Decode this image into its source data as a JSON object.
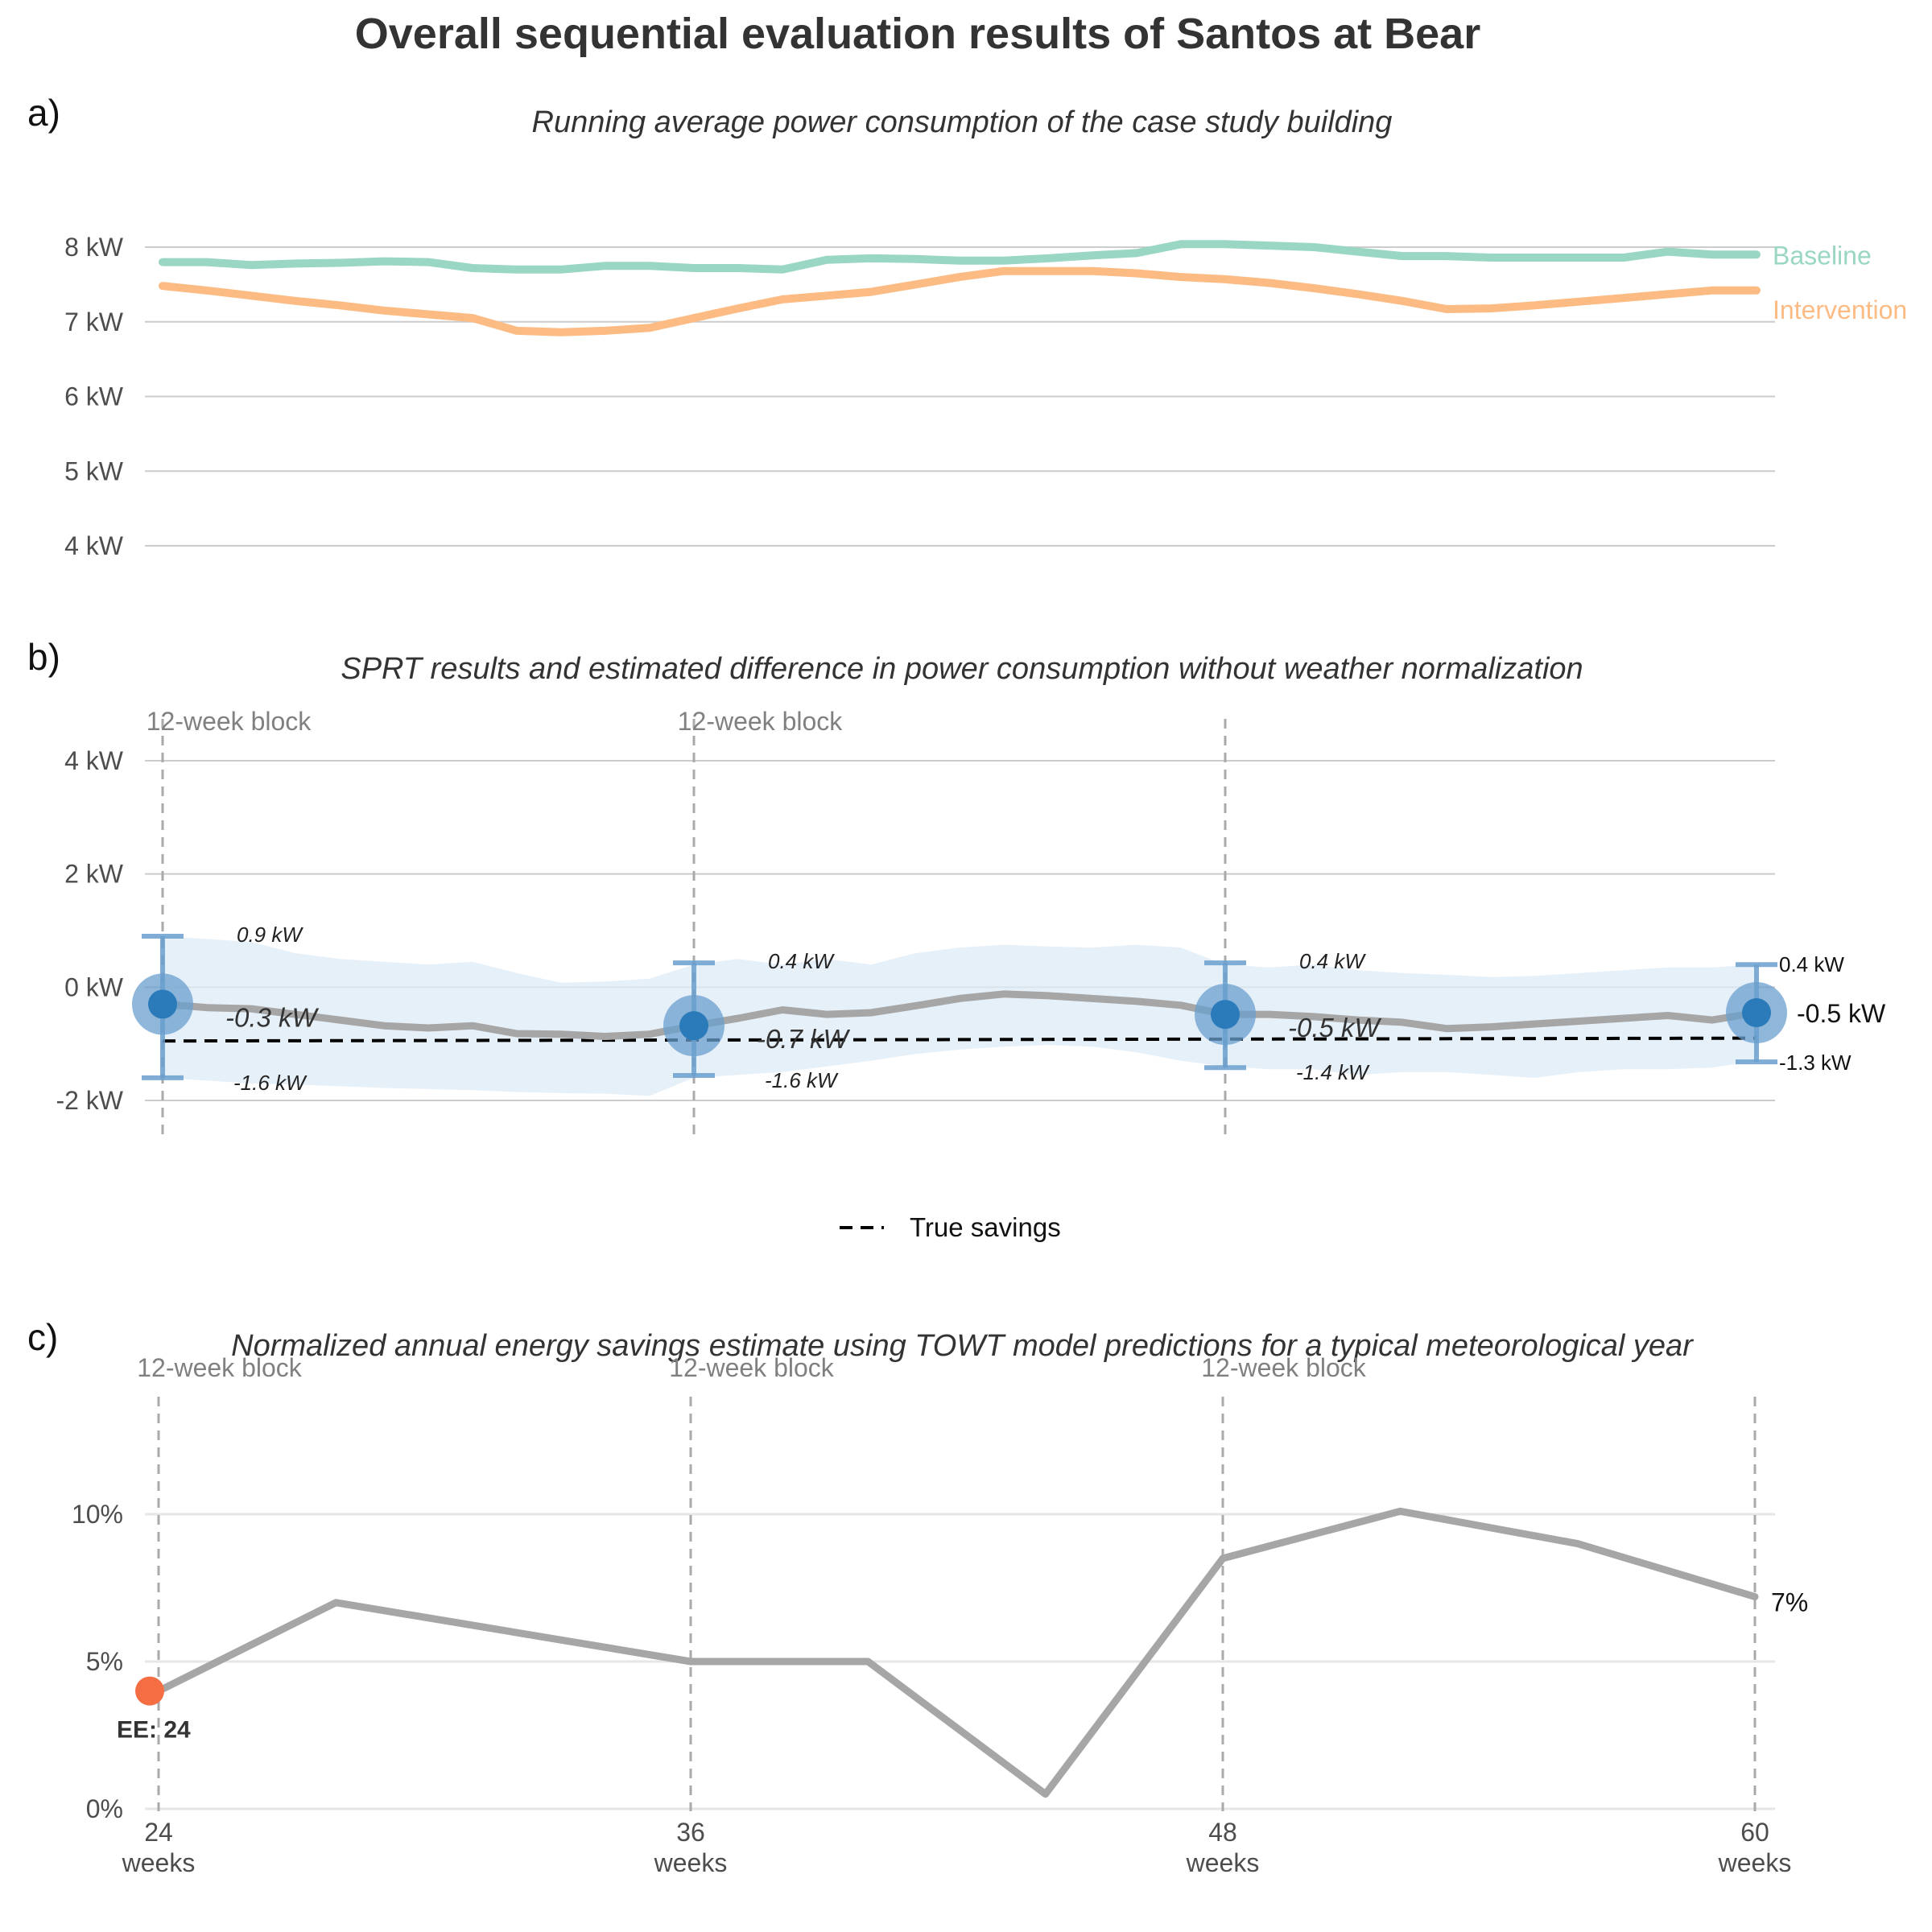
{
  "title": "Overall sequential evaluation results of Santos at Bear",
  "colors": {
    "baseline": "#99d6c4",
    "intervention": "#fdbb84",
    "estimate_line": "#a6a6a6",
    "ci_band": "#deebf7",
    "point": "#2b7bba",
    "point_halo": "#6a9fce",
    "errorbar": "#6a9fce",
    "ee_point": "#f46d43"
  },
  "chart_data": [
    {
      "panel": "a)",
      "type": "line",
      "title": "Running average power consumption of the case study building",
      "xlim": [
        24,
        60
      ],
      "ylim": [
        4,
        8
      ],
      "yticks": [
        4,
        5,
        6,
        7,
        8
      ],
      "ytick_labels": [
        "4 kW",
        "5 kW",
        "6 kW",
        "7 kW",
        "8 kW"
      ],
      "grid": true,
      "x": [
        24,
        25,
        26,
        27,
        28,
        29,
        30,
        31,
        32,
        33,
        34,
        35,
        36,
        37,
        38,
        39,
        40,
        41,
        42,
        43,
        44,
        45,
        46,
        47,
        48,
        49,
        50,
        51,
        52,
        53,
        54,
        55,
        56,
        57,
        58,
        59,
        60
      ],
      "series": [
        {
          "name": "Baseline",
          "color": "#99d6c4",
          "values": [
            7.8,
            7.8,
            7.76,
            7.78,
            7.79,
            7.81,
            7.8,
            7.72,
            7.7,
            7.7,
            7.75,
            7.75,
            7.72,
            7.72,
            7.7,
            7.83,
            7.85,
            7.84,
            7.82,
            7.82,
            7.85,
            7.89,
            7.92,
            8.04,
            8.04,
            8.02,
            8.0,
            7.94,
            7.88,
            7.88,
            7.86,
            7.86,
            7.86,
            7.86,
            7.94,
            7.9,
            7.9
          ]
        },
        {
          "name": "Intervention",
          "color": "#fdbb84",
          "values": [
            7.48,
            7.42,
            7.35,
            7.28,
            7.22,
            7.15,
            7.1,
            7.05,
            6.88,
            6.86,
            6.88,
            6.92,
            7.05,
            7.18,
            7.3,
            7.35,
            7.4,
            7.5,
            7.6,
            7.68,
            7.68,
            7.68,
            7.65,
            7.6,
            7.57,
            7.52,
            7.45,
            7.37,
            7.28,
            7.17,
            7.18,
            7.22,
            7.27,
            7.32,
            7.37,
            7.42,
            7.42
          ]
        }
      ]
    },
    {
      "panel": "b)",
      "type": "line",
      "title": "SPRT results and estimated difference in power consumption without weather normalization",
      "xlim": [
        24,
        60
      ],
      "ylim": [
        -2,
        4
      ],
      "yticks": [
        -2,
        0,
        2,
        4
      ],
      "ytick_labels": [
        "-2 kW",
        "0 kW",
        "2 kW",
        "4 kW"
      ],
      "grid": true,
      "block_label": "12-week block",
      "blocks": [
        24,
        36,
        48,
        60
      ],
      "x": [
        24,
        25,
        26,
        27,
        28,
        29,
        30,
        31,
        32,
        33,
        34,
        35,
        36,
        37,
        38,
        39,
        40,
        41,
        42,
        43,
        44,
        45,
        46,
        47,
        48,
        49,
        50,
        51,
        52,
        53,
        54,
        55,
        56,
        57,
        58,
        59,
        60
      ],
      "estimate": [
        -0.3,
        -0.36,
        -0.38,
        -0.48,
        -0.58,
        -0.68,
        -0.72,
        -0.68,
        -0.82,
        -0.83,
        -0.87,
        -0.83,
        -0.68,
        -0.55,
        -0.4,
        -0.48,
        -0.45,
        -0.33,
        -0.2,
        -0.12,
        -0.15,
        -0.2,
        -0.25,
        -0.32,
        -0.48,
        -0.48,
        -0.52,
        -0.58,
        -0.62,
        -0.73,
        -0.7,
        -0.65,
        -0.6,
        -0.55,
        -0.5,
        -0.58,
        -0.45
      ],
      "ci_upper": [
        0.9,
        0.85,
        0.8,
        0.6,
        0.5,
        0.45,
        0.4,
        0.45,
        0.25,
        0.08,
        0.1,
        0.15,
        0.4,
        0.5,
        0.4,
        0.5,
        0.4,
        0.6,
        0.7,
        0.75,
        0.72,
        0.7,
        0.75,
        0.7,
        0.4,
        0.35,
        0.4,
        0.3,
        0.25,
        0.22,
        0.18,
        0.2,
        0.25,
        0.3,
        0.35,
        0.35,
        0.4
      ],
      "ci_lower": [
        -1.6,
        -1.65,
        -1.7,
        -1.72,
        -1.75,
        -1.78,
        -1.8,
        -1.82,
        -1.85,
        -1.87,
        -1.88,
        -1.92,
        -1.6,
        -1.55,
        -1.5,
        -1.4,
        -1.3,
        -1.18,
        -1.1,
        -1.05,
        -1.02,
        -1.05,
        -1.15,
        -1.3,
        -1.4,
        -1.45,
        -1.45,
        -1.55,
        -1.5,
        -1.5,
        -1.55,
        -1.6,
        -1.5,
        -1.45,
        -1.45,
        -1.42,
        -1.3
      ],
      "true_savings": {
        "label": "True savings",
        "x": [
          24,
          60
        ],
        "values": [
          -0.95,
          -0.9
        ]
      },
      "checkpoints": [
        {
          "x": 24,
          "estimate": -0.3,
          "upper": 0.9,
          "lower": -1.6,
          "estimate_label": "-0.3 kW",
          "upper_label": "0.9 kW",
          "lower_label": "-1.6 kW"
        },
        {
          "x": 36,
          "estimate": -0.68,
          "upper": 0.43,
          "lower": -1.56,
          "estimate_label": "-0.7 kW",
          "upper_label": "0.4 kW",
          "lower_label": "-1.6 kW"
        },
        {
          "x": 48,
          "estimate": -0.48,
          "upper": 0.43,
          "lower": -1.42,
          "estimate_label": "-0.5 kW",
          "upper_label": "0.4 kW",
          "lower_label": "-1.4 kW"
        },
        {
          "x": 60,
          "estimate": -0.45,
          "upper": 0.4,
          "lower": -1.32,
          "estimate_label": "-0.5 kW",
          "upper_label": "0.4 kW",
          "lower_label": "-1.3 kW"
        }
      ],
      "legend_placement": "bottom-center"
    },
    {
      "panel": "c)",
      "type": "line",
      "title": "Normalized annual energy savings estimate using TOWT model predictions for a typical meteorological year",
      "xlim": [
        24,
        60
      ],
      "ylim": [
        0,
        10
      ],
      "yticks": [
        0,
        5,
        10
      ],
      "ytick_labels": [
        "0%",
        "5%",
        "10%"
      ],
      "xticks": [
        24,
        36,
        48,
        60
      ],
      "xtick_labels": [
        "24",
        "36",
        "48",
        "60"
      ],
      "xtick_sublabel": "weeks",
      "grid": true,
      "block_label": "12-week block",
      "blocks": [
        24,
        36,
        48,
        60
      ],
      "x": [
        24,
        28,
        32,
        36,
        40,
        44,
        48,
        52,
        56,
        60
      ],
      "values": [
        4.0,
        7.0,
        6.0,
        5.0,
        5.0,
        0.5,
        8.5,
        10.1,
        9.0,
        7.2
      ],
      "end_label": "7%",
      "early_end": {
        "x": 24,
        "value": 4.0,
        "label": "EE: 24"
      }
    }
  ]
}
